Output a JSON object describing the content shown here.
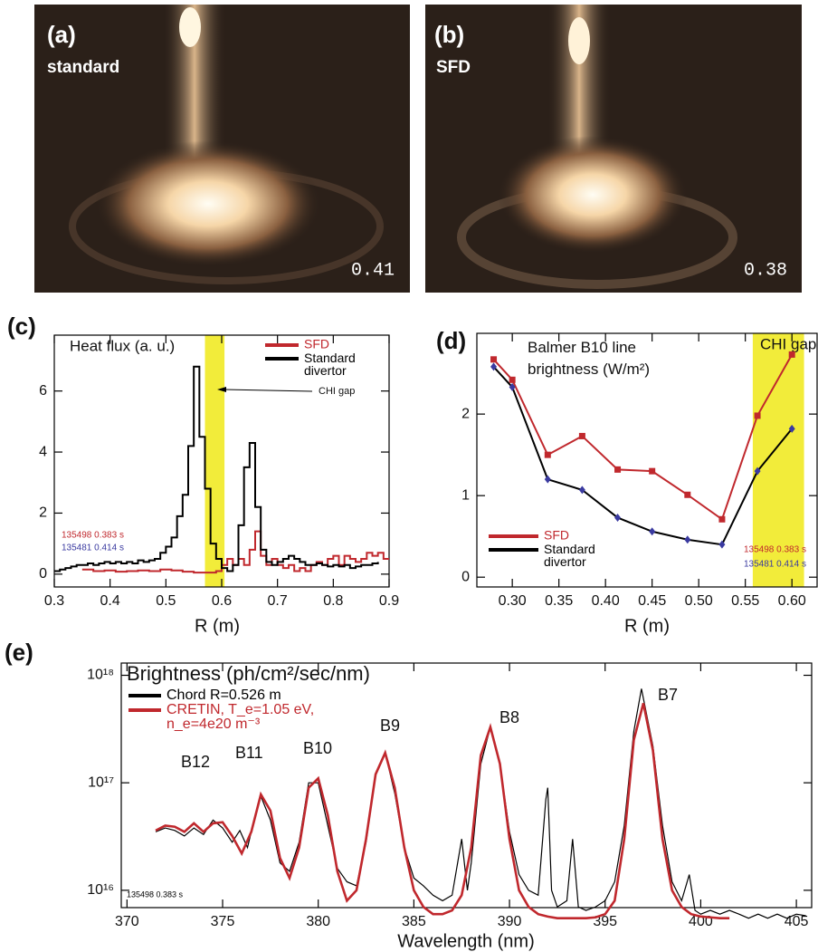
{
  "panels": [
    {
      "label": "(a)",
      "caption": "standard",
      "timestamp": "0.41"
    },
    {
      "label": "(b)",
      "caption": "SFD",
      "timestamp": "0.38"
    }
  ],
  "chart_data": [
    {
      "type": "line",
      "panel": "(c)",
      "title": "Heat flux (a. u.)",
      "xlabel": "R (m)",
      "drawstyle": "steps",
      "xlim": [
        0.3,
        0.9
      ],
      "ylim": [
        -0.42,
        7.83
      ],
      "xticks": [
        0.3,
        0.4,
        0.5,
        0.6,
        0.7,
        0.8,
        0.9
      ],
      "yticks": [
        0,
        2,
        4,
        6
      ],
      "bands": [
        {
          "range": [
            0.57,
            0.605
          ],
          "color": "#f2ec3a"
        }
      ],
      "annotations": [
        "CHI gap"
      ],
      "shot_labels": [
        {
          "text": "135498 0.383 s",
          "color": "#c0282d"
        },
        {
          "text": "135481 0.414 s",
          "color": "#3a3aa0"
        }
      ],
      "series": [
        {
          "name": "SFD",
          "color": "#c0282d",
          "x": [
            0.35,
            0.37,
            0.39,
            0.41,
            0.43,
            0.45,
            0.47,
            0.49,
            0.51,
            0.53,
            0.55,
            0.57,
            0.59,
            0.6,
            0.61,
            0.62,
            0.63,
            0.64,
            0.65,
            0.66,
            0.67,
            0.68,
            0.69,
            0.7,
            0.71,
            0.72,
            0.73,
            0.74,
            0.75,
            0.76,
            0.77,
            0.78,
            0.79,
            0.8,
            0.81,
            0.82,
            0.83,
            0.84,
            0.85,
            0.86,
            0.87,
            0.88,
            0.89,
            0.9
          ],
          "values": [
            0.15,
            0.1,
            0.12,
            0.08,
            0.1,
            0.12,
            0.1,
            0.15,
            0.12,
            0.08,
            0.05,
            0.05,
            0.1,
            0.3,
            0.5,
            0.3,
            0.5,
            0.3,
            0.8,
            1.4,
            0.6,
            0.3,
            0.5,
            0.3,
            0.2,
            0.3,
            0.1,
            0.2,
            0.1,
            0.3,
            0.4,
            0.3,
            0.5,
            0.6,
            0.3,
            0.6,
            0.5,
            0.4,
            0.5,
            0.7,
            0.6,
            0.7,
            0.5,
            0.5
          ]
        },
        {
          "name": "Standard\ndivertor",
          "color": "#000000",
          "x": [
            0.3,
            0.31,
            0.32,
            0.33,
            0.34,
            0.35,
            0.36,
            0.37,
            0.38,
            0.39,
            0.4,
            0.41,
            0.42,
            0.43,
            0.44,
            0.45,
            0.46,
            0.47,
            0.48,
            0.49,
            0.5,
            0.51,
            0.52,
            0.53,
            0.54,
            0.55,
            0.56,
            0.57,
            0.58,
            0.59,
            0.6,
            0.61,
            0.62,
            0.63,
            0.64,
            0.65,
            0.66,
            0.67,
            0.68,
            0.69,
            0.7,
            0.71,
            0.72,
            0.73,
            0.74,
            0.75,
            0.76,
            0.77,
            0.78,
            0.79,
            0.8,
            0.81,
            0.82,
            0.83,
            0.84,
            0.85,
            0.86,
            0.87,
            0.88
          ],
          "values": [
            0.1,
            0.15,
            0.2,
            0.25,
            0.3,
            0.3,
            0.35,
            0.3,
            0.35,
            0.4,
            0.35,
            0.4,
            0.35,
            0.4,
            0.35,
            0.45,
            0.4,
            0.45,
            0.5,
            0.7,
            0.9,
            1.2,
            1.9,
            2.6,
            4.2,
            6.8,
            4.5,
            2.8,
            1.0,
            0.5,
            0.2,
            0.1,
            0.3,
            1.6,
            3.5,
            4.3,
            2.2,
            0.8,
            0.4,
            0.3,
            0.4,
            0.5,
            0.6,
            0.5,
            0.4,
            0.3,
            0.3,
            0.35,
            0.3,
            0.25,
            0.3,
            0.25,
            0.3,
            0.2,
            0.25,
            0.3,
            0.3,
            0.35,
            0.4
          ]
        }
      ]
    },
    {
      "type": "line",
      "panel": "(d)",
      "title": "Balmer B10 line\nbrightness (W/m²)",
      "xlabel": "R (m)",
      "xlim": [
        0.262,
        0.627
      ],
      "ylim": [
        -0.12,
        2.99
      ],
      "xticks": [
        {
          "value": 0.3,
          "label": "0.30"
        },
        {
          "value": 0.35,
          "label": "0.35"
        },
        {
          "value": 0.4,
          "label": "0.40"
        },
        {
          "value": 0.45,
          "label": "0.45"
        },
        {
          "value": 0.5,
          "label": "0.50"
        },
        {
          "value": 0.55,
          "label": "0.55"
        },
        {
          "value": 0.6,
          "label": "0.60"
        }
      ],
      "yticks": [
        0,
        1,
        2
      ],
      "bands": [
        {
          "range": [
            0.558,
            0.613
          ],
          "color": "#f2ec3a",
          "label": "CHI gap"
        }
      ],
      "shot_labels": [
        {
          "text": "135498 0.383 s",
          "color": "#c0282d"
        },
        {
          "text": "135481 0.414 s",
          "color": "#3a3aa0"
        }
      ],
      "series": [
        {
          "name": "SFD",
          "color": "#c0282d",
          "marker": "square",
          "marker_color": "#c0282d",
          "x": [
            0.28,
            0.3,
            0.338,
            0.375,
            0.413,
            0.45,
            0.488,
            0.525,
            0.563,
            0.6
          ],
          "values": [
            2.67,
            2.42,
            1.5,
            1.73,
            1.32,
            1.3,
            1.01,
            0.71,
            1.98,
            2.73
          ]
        },
        {
          "name": "Standard\ndivertor",
          "color": "#000000",
          "marker": "diamond",
          "marker_color": "#3a3aa0",
          "x": [
            0.28,
            0.3,
            0.338,
            0.375,
            0.413,
            0.45,
            0.488,
            0.525,
            0.563,
            0.6
          ],
          "values": [
            2.58,
            2.33,
            1.2,
            1.07,
            0.73,
            0.56,
            0.46,
            0.4,
            1.3,
            1.82
          ]
        }
      ]
    },
    {
      "type": "line",
      "panel": "(e)",
      "title": "Brightness (ph/cm²/sec/nm)",
      "xlabel": "Wavelength (nm)",
      "yscale": "log",
      "xlim": [
        369.7,
        405.8
      ],
      "ylim": [
        6900000000000000.0,
        1.3e+18
      ],
      "xticks": [
        370,
        375,
        380,
        385,
        390,
        395,
        400,
        405
      ],
      "yticks": [
        {
          "value": 1e+16,
          "label": "10¹⁶"
        },
        {
          "value": 1e+17,
          "label": "10¹⁷"
        },
        {
          "value": 1e+18,
          "label": "10¹⁸"
        }
      ],
      "annotations": [
        "B12",
        "B11",
        "B10",
        "B9",
        "B8",
        "B7"
      ],
      "shot_labels": [
        {
          "text": "135498 0.383 s",
          "color": "#000000"
        }
      ],
      "series": [
        {
          "name": "Chord R=0.526 m",
          "color": "#000000",
          "width": 1.2,
          "x": [
            371.5,
            372,
            372.5,
            373,
            373.5,
            374,
            374.5,
            375,
            375.5,
            375.9,
            376.3,
            376.5,
            377,
            377.5,
            378,
            378.5,
            379,
            379.5,
            380,
            380.5,
            381,
            381.5,
            382,
            382.5,
            383,
            383.5,
            384,
            384.5,
            385,
            385.5,
            386,
            386.5,
            387,
            387.5,
            387.8,
            388,
            388.5,
            389,
            389.5,
            390,
            390.5,
            391,
            391.5,
            391.9,
            392,
            392.2,
            392.5,
            393,
            393.3,
            393.6,
            394,
            394.5,
            395,
            395.5,
            396,
            396.5,
            396.9,
            397.5,
            398,
            398.5,
            399,
            399.4,
            399.7,
            400,
            400.5,
            401,
            401.5,
            402,
            402.5,
            403,
            403.5,
            404,
            404.5,
            405,
            405.5
          ],
          "values": [
            3.5e+16,
            3.8e+16,
            3.6e+16,
            3.2e+16,
            3.8e+16,
            3.3e+16,
            4.5e+16,
            3.8e+16,
            2.8e+16,
            3.6e+16,
            2.5e+16,
            3.5e+16,
            7.5e+16,
            4.5e+16,
            1.8e+16,
            1.5e+16,
            2.8e+16,
            1e+17,
            1e+17,
            4e+16,
            1.6e+16,
            1.2e+16,
            1.1e+16,
            2.8e+16,
            1.2e+17,
            1.9e+17,
            8e+16,
            2.5e+16,
            1.3e+16,
            1.1e+16,
            9000000000000000.0,
            8000000000000000.0,
            9000000000000000.0,
            3e+16,
            1e+16,
            1.8e+16,
            1.5e+17,
            3.3e+17,
            1.5e+17,
            3.5e+16,
            1.4e+16,
            1e+16,
            9000000000000000.0,
            7e+16,
            9e+16,
            1e+16,
            7000000000000000.0,
            8000000000000000.0,
            3e+16,
            7000000000000000.0,
            6500000000000000.0,
            7000000000000000.0,
            8000000000000000.0,
            1.2e+16,
            4e+16,
            3e+17,
            7.5e+17,
            2.2e+17,
            4e+16,
            1.2e+16,
            8000000000000000.0,
            1.4e+16,
            6500000000000000.0,
            6000000000000000.0,
            6500000000000000.0,
            6000000000000000.0,
            6500000000000000.0,
            6000000000000000.0,
            5500000000000000.0,
            6000000000000000.0,
            5500000000000000.0,
            6000000000000000.0,
            5500000000000000.0,
            6000000000000000.0,
            5800000000000000.0
          ]
        },
        {
          "name": "CRETIN, T_e=1.05 eV,\nn_e=4e20 m⁻³",
          "color": "#c0282d",
          "width": 2.6,
          "x": [
            371.5,
            372,
            372.5,
            373,
            373.5,
            374,
            374.5,
            375,
            375.5,
            376,
            376.5,
            377,
            377.5,
            378,
            378.5,
            379,
            379.5,
            380,
            380.5,
            381,
            381.5,
            382,
            382.5,
            383,
            383.5,
            384,
            384.5,
            385,
            385.5,
            386,
            386.5,
            387,
            387.5,
            388,
            388.5,
            389,
            389.5,
            390,
            390.5,
            391,
            391.5,
            392,
            392.5,
            393,
            393.5,
            394,
            394.5,
            395,
            395.5,
            396,
            396.5,
            397,
            397.5,
            398,
            398.5,
            399,
            399.5,
            400,
            400.5,
            401,
            401.5
          ],
          "values": [
            3.6e+16,
            4e+16,
            3.9e+16,
            3.5e+16,
            4.2e+16,
            3.5e+16,
            4.2e+16,
            4.3e+16,
            3.2e+16,
            2.2e+16,
            3.5e+16,
            7.8e+16,
            5.5e+16,
            2e+16,
            1.3e+16,
            2.5e+16,
            9e+16,
            1.1e+17,
            5e+16,
            1.5e+16,
            8000000000000000.0,
            1e+16,
            3e+16,
            1.2e+17,
            1.9e+17,
            9e+16,
            2.5e+16,
            1e+16,
            7000000000000000.0,
            6000000000000000.0,
            6000000000000000.0,
            6500000000000000.0,
            9000000000000000.0,
            2.5e+16,
            1.8e+17,
            3.3e+17,
            1.5e+17,
            3e+16,
            1e+16,
            7000000000000000.0,
            6000000000000000.0,
            5700000000000000.0,
            5500000000000000.0,
            5500000000000000.0,
            5500000000000000.0,
            5500000000000000.0,
            5600000000000000.0,
            6000000000000000.0,
            8000000000000000.0,
            3e+16,
            2.5e+17,
            5.5e+17,
            2e+17,
            3e+16,
            1e+16,
            7000000000000000.0,
            6000000000000000.0,
            5700000000000000.0,
            5600000000000000.0,
            5500000000000000.0,
            5500000000000000.0
          ]
        }
      ]
    }
  ]
}
